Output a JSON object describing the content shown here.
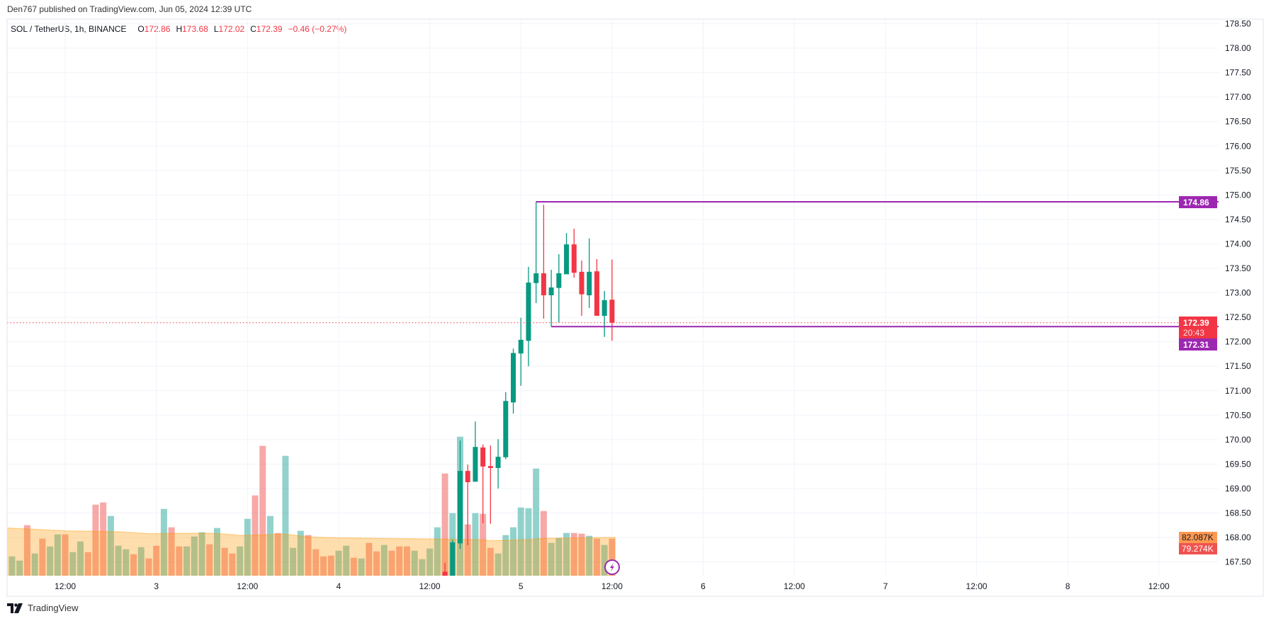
{
  "header": {
    "published": "Den767 published on TradingView.com, Jun 05, 2024 12:39 UTC"
  },
  "legend": {
    "symbol": "SOL / TetherUS, 1h, BINANCE",
    "o_label": "O",
    "o": "172.86",
    "h_label": "H",
    "h": "173.68",
    "l_label": "L",
    "l": "172.02",
    "c_label": "C",
    "c": "172.39",
    "change": "−0.46 (−0.27%)"
  },
  "footer": {
    "brand": "TradingView",
    "logo_icon": "tradingview-logo-icon"
  },
  "colors": {
    "up": "#089981",
    "down": "#f23645",
    "volume_up": "rgba(38,166,154,0.5)",
    "volume_down": "rgba(239,83,80,0.5)",
    "volume_ma": "#ff9800",
    "level_line": "#9c27b0",
    "last_price": "#f23645",
    "grid": "#f0f3fa"
  },
  "chart_data": {
    "type": "candlestick",
    "symbol": "SOL / TetherUS",
    "interval": "1h",
    "first_bar_time": "2024-06-02 05:00",
    "ylim": [
      167.5,
      178.5
    ],
    "price_labels": [
      "178.50",
      "178.00",
      "177.50",
      "177.00",
      "176.50",
      "176.00",
      "175.50",
      "175.00",
      "174.50",
      "174.00",
      "173.50",
      "173.00",
      "172.50",
      "172.00",
      "171.50",
      "171.00",
      "170.50",
      "170.00",
      "169.50",
      "169.00",
      "168.50",
      "168.00",
      "167.50"
    ],
    "time_labels": [
      "12:00",
      "3",
      "12:00",
      "4",
      "12:00",
      "5",
      "12:00",
      "6",
      "12:00",
      "7",
      "12:00",
      "8",
      "12:00"
    ],
    "time_label_bar_index": [
      8,
      20,
      32,
      44,
      56,
      68,
      80,
      92,
      104,
      116,
      128,
      140,
      152
    ],
    "bars": [
      {
        "v": 41.4,
        "up": true
      },
      {
        "v": 32.3,
        "up": true
      },
      {
        "v": 108.1,
        "up": false
      },
      {
        "v": 47.5,
        "up": true
      },
      {
        "v": 79.3,
        "up": false
      },
      {
        "v": 62.6,
        "up": true
      },
      {
        "v": 88.4,
        "up": true
      },
      {
        "v": 88.4,
        "up": false
      },
      {
        "v": 50.5,
        "up": true
      },
      {
        "v": 73.2,
        "up": true
      },
      {
        "v": 50.5,
        "up": false
      },
      {
        "v": 152.0,
        "up": false
      },
      {
        "v": 156.6,
        "up": false
      },
      {
        "v": 127.8,
        "up": true
      },
      {
        "v": 64.1,
        "up": true
      },
      {
        "v": 56.6,
        "up": true
      },
      {
        "v": 46.0,
        "up": false
      },
      {
        "v": 61.1,
        "up": true
      },
      {
        "v": 36.9,
        "up": false
      },
      {
        "v": 64.1,
        "up": false
      },
      {
        "v": 142.9,
        "up": true
      },
      {
        "v": 103.5,
        "up": false
      },
      {
        "v": 62.6,
        "up": false
      },
      {
        "v": 62.6,
        "up": true
      },
      {
        "v": 83.8,
        "up": true
      },
      {
        "v": 92.9,
        "up": true
      },
      {
        "v": 67.2,
        "up": false
      },
      {
        "v": 102.0,
        "up": true
      },
      {
        "v": 59.6,
        "up": false
      },
      {
        "v": 47.5,
        "up": false
      },
      {
        "v": 62.6,
        "up": true
      },
      {
        "v": 121.7,
        "up": true
      },
      {
        "v": 171.7,
        "up": false
      },
      {
        "v": 277.8,
        "up": false
      },
      {
        "v": 127.8,
        "up": true
      },
      {
        "v": 91.4,
        "up": false
      },
      {
        "v": 256.5,
        "up": true
      },
      {
        "v": 59.6,
        "up": true
      },
      {
        "v": 96.0,
        "up": true
      },
      {
        "v": 86.9,
        "up": false
      },
      {
        "v": 56.6,
        "up": false
      },
      {
        "v": 41.4,
        "up": false
      },
      {
        "v": 42.9,
        "up": false
      },
      {
        "v": 53.5,
        "up": true
      },
      {
        "v": 64.1,
        "up": true
      },
      {
        "v": 38.4,
        "up": false
      },
      {
        "v": 36.9,
        "up": true
      },
      {
        "v": 70.2,
        "up": false
      },
      {
        "v": 52.0,
        "up": false
      },
      {
        "v": 65.7,
        "up": true
      },
      {
        "v": 53.5,
        "up": false
      },
      {
        "v": 62.6,
        "up": false
      },
      {
        "v": 62.6,
        "up": false
      },
      {
        "v": 53.5,
        "up": true
      },
      {
        "v": 35.4,
        "up": true
      },
      {
        "v": 58.1,
        "up": true
      },
      {
        "v": 103.5,
        "up": true
      },
      {
        "v": 218.7,
        "up": false,
        "o": 167.3,
        "h": 167.48,
        "l": 166.9,
        "c": 167.1
      },
      {
        "v": 133.8,
        "up": true,
        "o": 167.1,
        "h": 167.95,
        "l": 166.8,
        "c": 167.9
      },
      {
        "v": 297.4,
        "up": true,
        "o": 167.88,
        "h": 169.98,
        "l": 167.77,
        "c": 169.36
      },
      {
        "v": 109.6,
        "up": false,
        "o": 169.36,
        "h": 169.49,
        "l": 167.84,
        "c": 169.13
      },
      {
        "v": 133.8,
        "up": true,
        "o": 169.14,
        "h": 170.37,
        "l": 169.14,
        "c": 169.85
      },
      {
        "v": 132.3,
        "up": false,
        "o": 169.84,
        "h": 169.9,
        "l": 168.29,
        "c": 169.45
      },
      {
        "v": 59.6,
        "up": false,
        "o": 169.46,
        "h": 169.88,
        "l": 168.28,
        "c": 169.42
      },
      {
        "v": 47.5,
        "up": true,
        "o": 169.42,
        "h": 170.01,
        "l": 169.0,
        "c": 169.65
      },
      {
        "v": 86.9,
        "up": true,
        "o": 169.64,
        "h": 170.97,
        "l": 169.6,
        "c": 170.79
      },
      {
        "v": 103.5,
        "up": true,
        "o": 170.76,
        "h": 171.86,
        "l": 170.53,
        "c": 171.77
      },
      {
        "v": 145.9,
        "up": true,
        "o": 171.76,
        "h": 172.49,
        "l": 171.1,
        "c": 172.04
      },
      {
        "v": 144.4,
        "up": true,
        "o": 172.02,
        "h": 173.53,
        "l": 171.5,
        "c": 173.21
      },
      {
        "v": 229.3,
        "up": true,
        "o": 173.2,
        "h": 174.86,
        "l": 172.79,
        "c": 173.4
      },
      {
        "v": 138.4,
        "up": false,
        "o": 173.4,
        "h": 174.8,
        "l": 172.47,
        "c": 172.95
      },
      {
        "v": 70.2,
        "up": true,
        "o": 172.95,
        "h": 173.47,
        "l": 172.31,
        "c": 173.11
      },
      {
        "v": 80.8,
        "up": true,
        "o": 173.1,
        "h": 173.79,
        "l": 172.4,
        "c": 173.4
      },
      {
        "v": 91.4,
        "up": true,
        "o": 173.38,
        "h": 174.22,
        "l": 173.38,
        "c": 173.99
      },
      {
        "v": 91.4,
        "up": false,
        "o": 173.99,
        "h": 174.31,
        "l": 173.31,
        "c": 173.41
      },
      {
        "v": 89.9,
        "up": false,
        "o": 173.43,
        "h": 173.66,
        "l": 172.53,
        "c": 172.97
      },
      {
        "v": 85.3,
        "up": true,
        "o": 172.95,
        "h": 174.11,
        "l": 172.69,
        "c": 173.43
      },
      {
        "v": 79.3,
        "up": false,
        "o": 173.44,
        "h": 173.69,
        "l": 172.53,
        "c": 172.53
      },
      {
        "v": 65.7,
        "up": true,
        "o": 172.53,
        "h": 173.04,
        "l": 172.1,
        "c": 172.85
      },
      {
        "v": 79.274,
        "up": false,
        "o": 172.86,
        "h": 173.68,
        "l": 172.02,
        "c": 172.39
      }
    ],
    "volume_ma": [
      [
        1,
        102
      ],
      [
        8,
        96
      ],
      [
        15,
        94
      ],
      [
        19,
        90
      ],
      [
        27,
        91
      ],
      [
        30,
        88
      ],
      [
        31,
        86
      ],
      [
        37,
        89
      ],
      [
        40,
        83
      ],
      [
        44,
        81
      ],
      [
        54,
        79
      ],
      [
        63,
        77
      ],
      [
        64,
        75
      ],
      [
        69,
        77
      ],
      [
        71,
        80
      ],
      [
        80,
        82.087
      ]
    ],
    "horizontal_lines": [
      {
        "price": 174.86,
        "label": "174.86",
        "from_bar": 70
      },
      {
        "price": 172.31,
        "label": "172.31",
        "from_bar": 72
      }
    ],
    "last_price": {
      "value": 172.39,
      "label": "172.39",
      "countdown": "20:43"
    },
    "volume_labels": {
      "ma": "82.087K",
      "last": "79.274K"
    }
  }
}
